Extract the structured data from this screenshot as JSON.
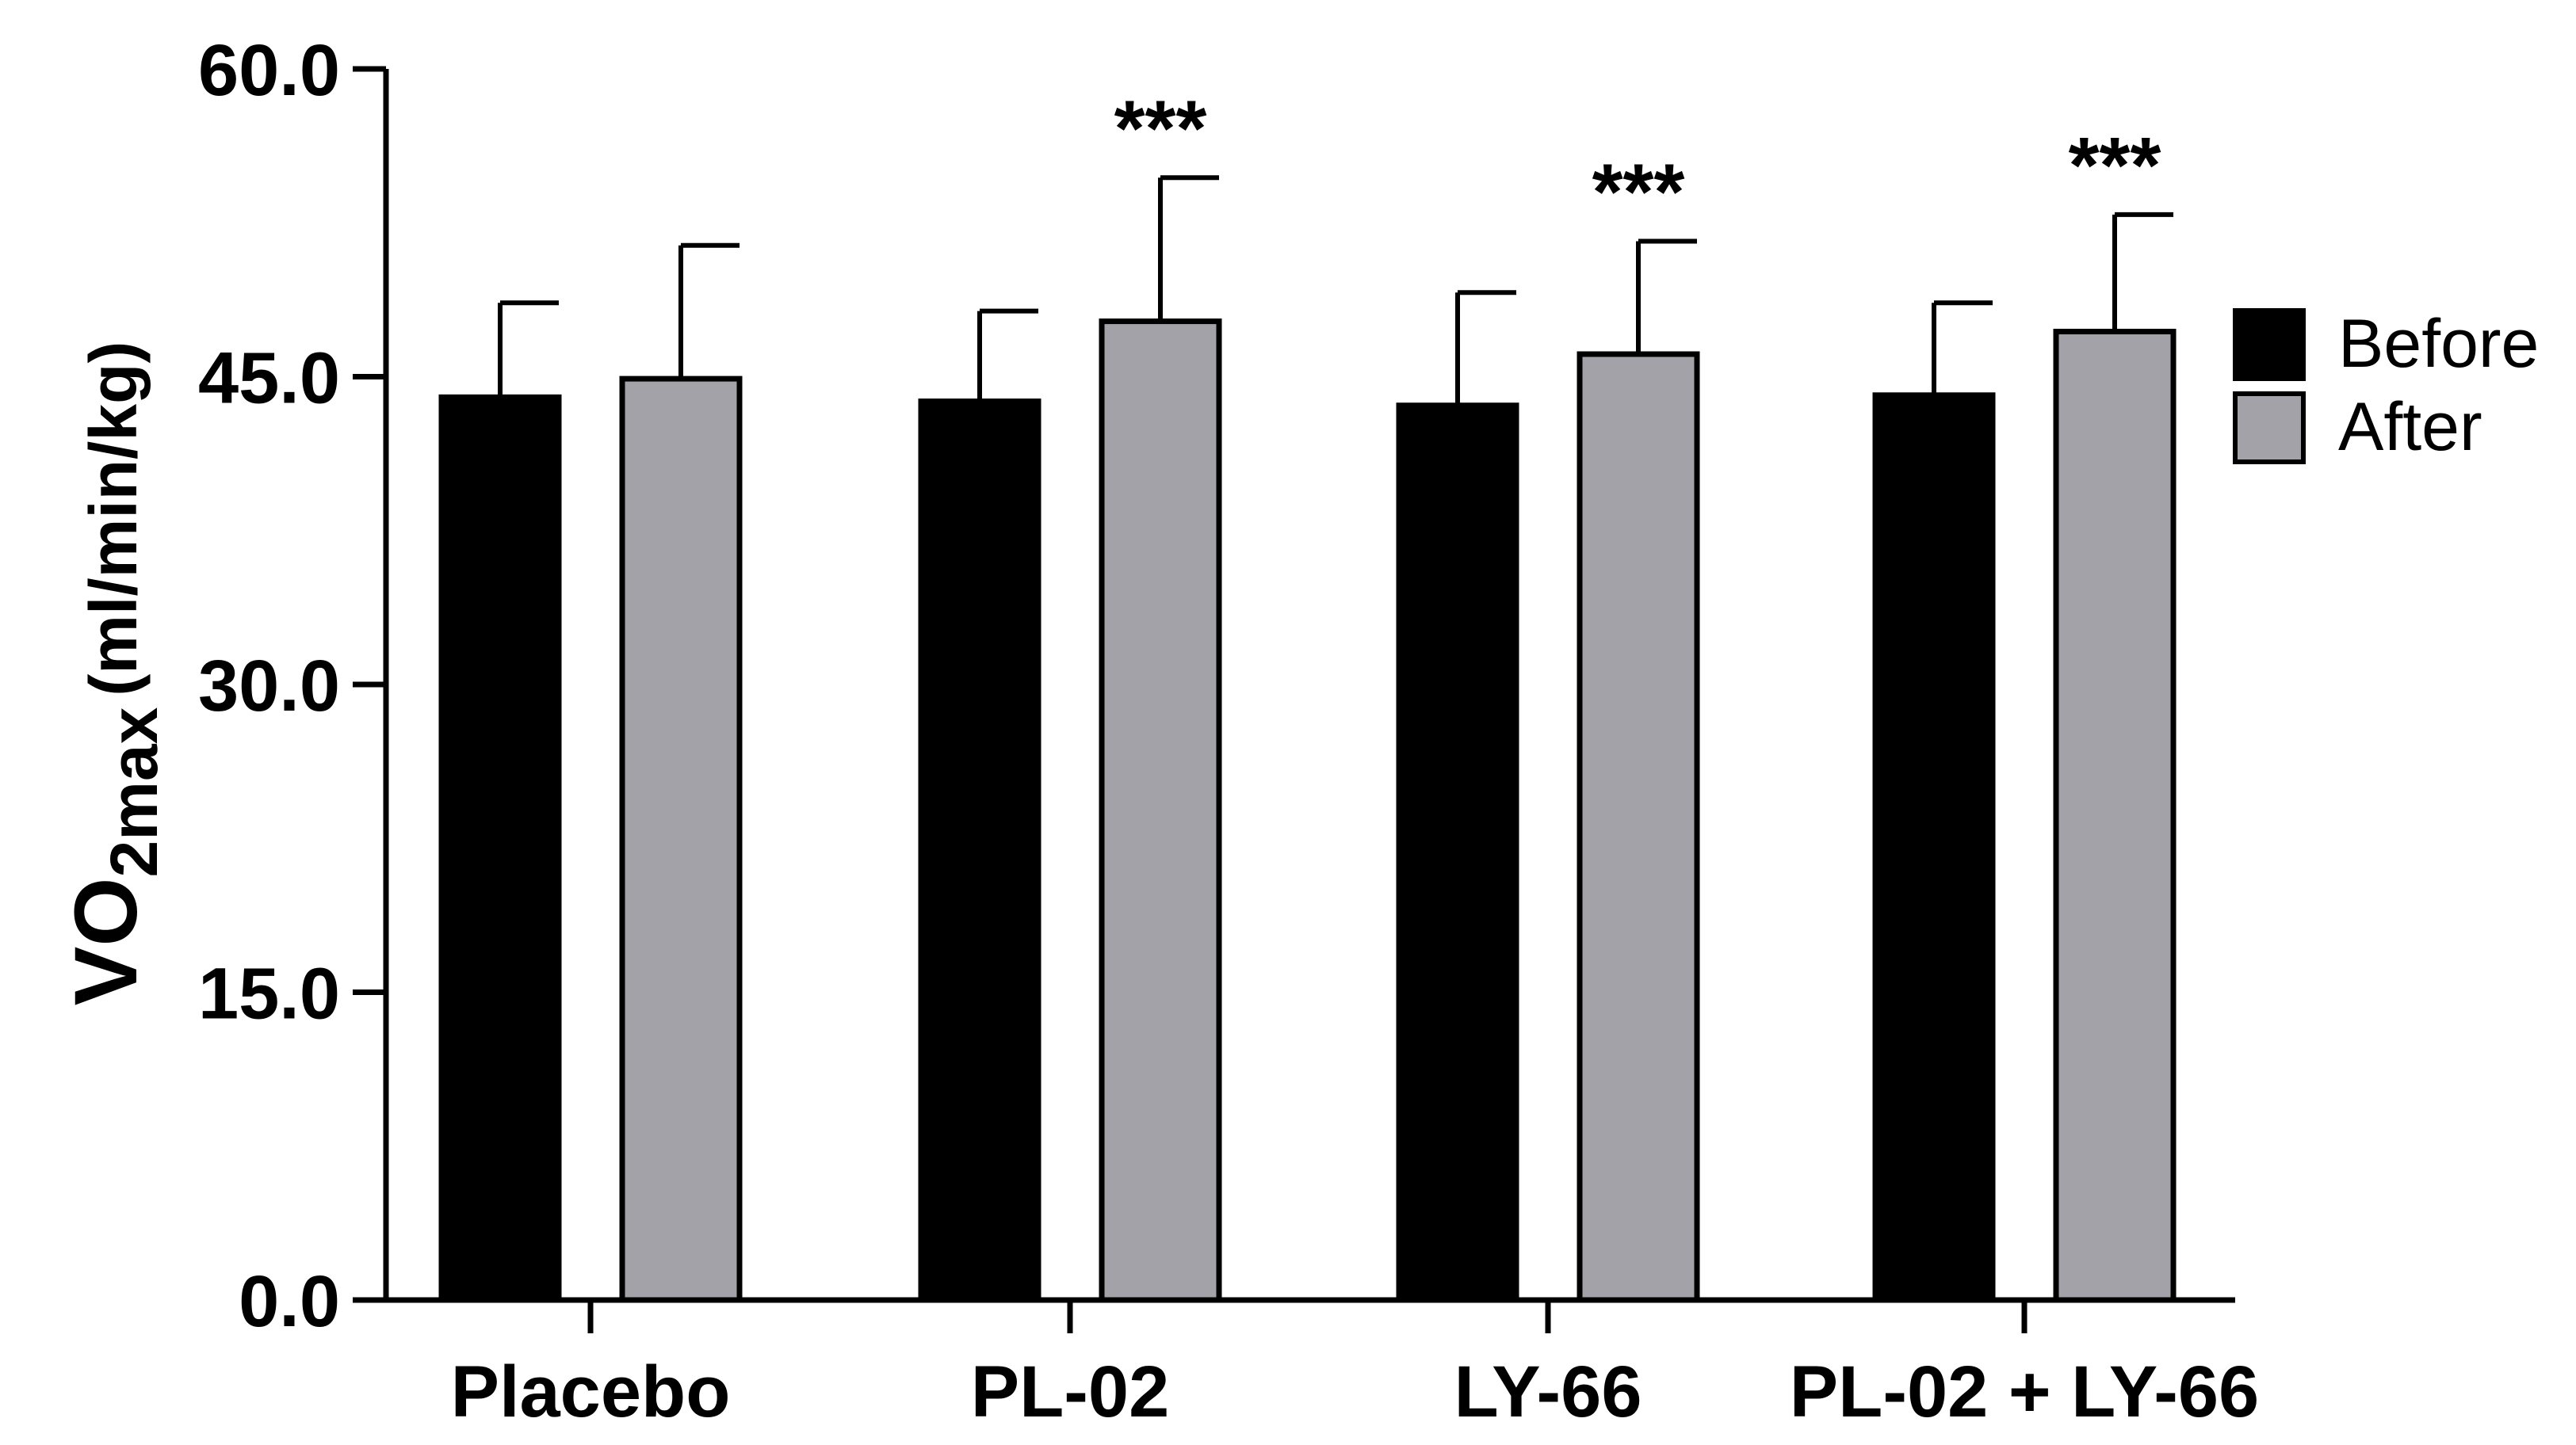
{
  "chart_data": {
    "type": "bar",
    "title": "",
    "xlabel": "",
    "ylabel": {
      "main": "VO",
      "subscript": "2max",
      "units": "(ml/min/kg)"
    },
    "ylim": [
      0,
      60
    ],
    "yticks": [
      "0.0",
      "15.0",
      "30.0",
      "45.0",
      "60.0"
    ],
    "ytick_values": [
      0,
      15,
      30,
      45,
      60
    ],
    "categories": [
      "Placebo",
      "PL-02",
      "LY-66",
      "PL-02 + LY-66"
    ],
    "series": [
      {
        "name": "Before",
        "color": "#000000",
        "values": [
          44.0,
          43.8,
          43.6,
          44.1
        ],
        "errors": [
          4.6,
          4.4,
          5.5,
          4.5
        ]
      },
      {
        "name": "After",
        "color": "#a3a2a8",
        "values": [
          44.9,
          47.7,
          46.1,
          47.2
        ],
        "errors": [
          6.5,
          7.0,
          5.5,
          5.7
        ]
      }
    ],
    "significance": [
      "",
      "***",
      "***",
      "***"
    ],
    "legend_position": "right"
  }
}
